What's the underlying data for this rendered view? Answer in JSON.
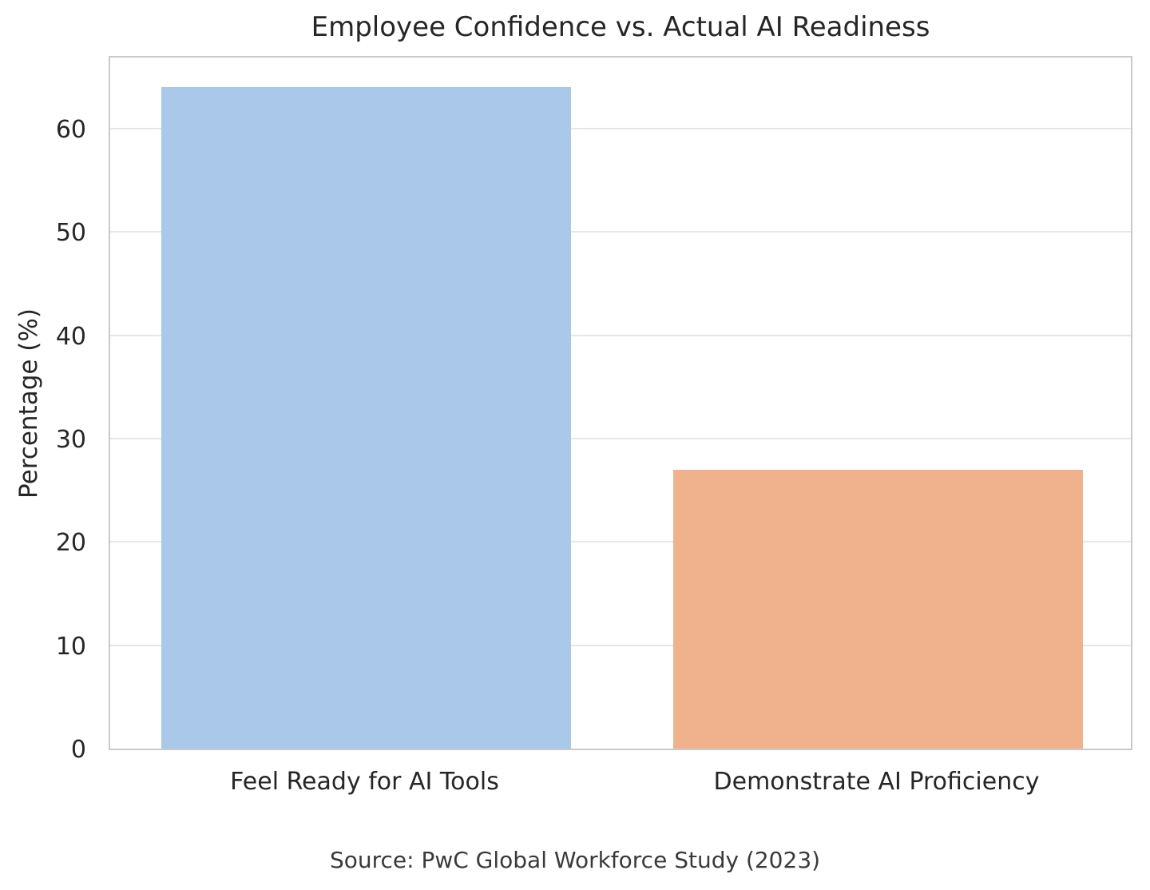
{
  "chart_data": {
    "type": "bar",
    "title": "Employee Confidence vs. Actual AI Readiness",
    "categories": [
      "Feel Ready for AI Tools",
      "Demonstrate AI Proficiency"
    ],
    "values": [
      64,
      27
    ],
    "bar_colors": [
      "#aac8e9",
      "#f0b28c"
    ],
    "xlabel": "",
    "ylabel": "Percentage (%)",
    "yticks": [
      0,
      10,
      20,
      30,
      40,
      50,
      60
    ],
    "ylim": [
      0,
      67.2
    ],
    "grid": "horizontal",
    "legend": "none",
    "bar_width_frac": 0.8,
    "caption": "Source: PwC Global Workforce Study (2023)",
    "colors": {
      "grid": "#e7e7e7",
      "spine": "#c9c9c9",
      "text": "#262626"
    }
  }
}
